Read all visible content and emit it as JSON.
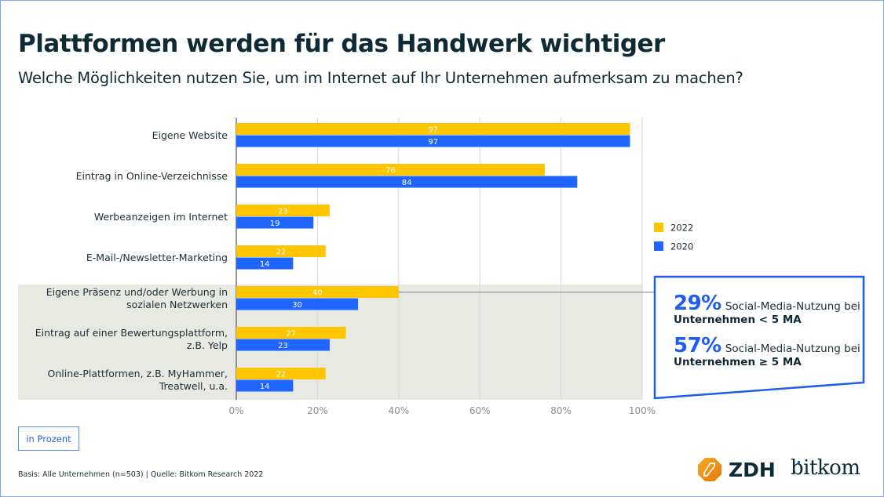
{
  "header": {
    "title": "Plattformen werden für das Handwerk wichtiger",
    "subtitle": "Welche Möglichkeiten nutzen Sie, um im Internet auf Ihr Unternehmen aufmerksam zu machen?"
  },
  "colors": {
    "series_2022": "#ffc600",
    "series_2020": "#1f65ff",
    "highlight_band": "#e9e9e4",
    "accent": "#1f5cf0",
    "gridline": "#d6d6d6",
    "axis": "#6b7378"
  },
  "chart_data": {
    "type": "bar",
    "orientation": "horizontal",
    "title": "Plattformen werden für das Handwerk wichtiger",
    "subtitle": "Welche Möglichkeiten nutzen Sie, um im Internet auf Ihr Unternehmen aufmerksam zu machen?",
    "xlabel": "",
    "ylabel": "",
    "unit": "in Prozent",
    "xlim": [
      0,
      100
    ],
    "grid": true,
    "ticks": [
      0,
      20,
      40,
      60,
      80,
      100
    ],
    "tick_labels": [
      "0%",
      "20%",
      "40%",
      "60%",
      "80%",
      "100%"
    ],
    "categories": [
      [
        "Eigene Website"
      ],
      [
        "Eintrag in Online-Verzeichnisse"
      ],
      [
        "Werbeanzeigen im Internet"
      ],
      [
        "E-Mail-/Newsletter-Marketing"
      ],
      [
        "Eigene Präsenz und/oder Werbung in",
        "sozialen Netzwerken"
      ],
      [
        "Eintrag auf einer Bewertungsplattform,",
        "z.B. Yelp"
      ],
      [
        "Online-Plattformen, z.B. MyHammer,",
        "Treatwell, u.a."
      ]
    ],
    "highlighted_categories": [
      4,
      5,
      6
    ],
    "series": [
      {
        "name": "2022",
        "color": "#ffc600",
        "values": [
          97,
          76,
          23,
          22,
          40,
          27,
          22
        ]
      },
      {
        "name": "2020",
        "color": "#1f65ff",
        "values": [
          97,
          84,
          19,
          14,
          30,
          23,
          14
        ]
      }
    ],
    "legend": {
      "position": "right",
      "entries": [
        "2022",
        "2020"
      ]
    },
    "annotation": {
      "linked_category": 4,
      "items": [
        {
          "value": "29%",
          "text": "Social-Media-Nutzung bei",
          "bold": "Unternehmen < 5 MA"
        },
        {
          "value": "57%",
          "text": "Social-Media-Nutzung bei",
          "bold": "Unternehmen ≥ 5 MA"
        }
      ]
    }
  },
  "footer": {
    "unit_label": "in Prozent",
    "source": "Basis: Alle Unternehmen (n=503) | Quelle: Bitkom Research 2022",
    "logos": [
      "ZDH",
      "bitkom"
    ]
  }
}
